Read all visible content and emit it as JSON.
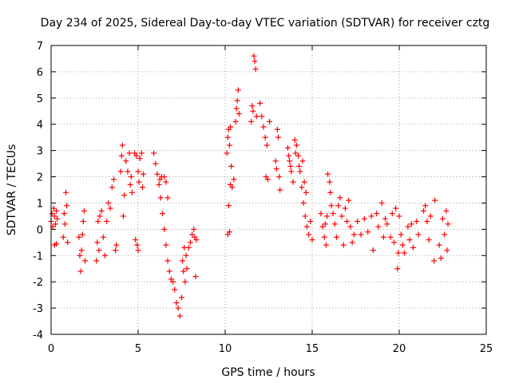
{
  "chart_data": {
    "type": "scatter",
    "title": "Day 234 of 2025, Sidereal Day-to-day VTEC variation (SDTVAR) for receiver cztg",
    "xlabel": "GPS time / hours",
    "ylabel": "SDTVAR / TECUs",
    "xlim": [
      0,
      25
    ],
    "ylim": [
      -4,
      7
    ],
    "xticks": [
      0,
      5,
      10,
      15,
      20,
      25
    ],
    "yticks": [
      -4,
      -3,
      -2,
      -1,
      0,
      1,
      2,
      3,
      4,
      5,
      6,
      7
    ],
    "grid": true,
    "marker": "+",
    "color": "#ff0000",
    "series": [
      {
        "name": "SDTVAR",
        "points": [
          [
            0.0,
            0.3
          ],
          [
            0.05,
            0.6
          ],
          [
            0.1,
            0.1
          ],
          [
            0.15,
            0.8
          ],
          [
            0.2,
            0.5
          ],
          [
            0.25,
            0.2
          ],
          [
            0.3,
            0.7
          ],
          [
            0.35,
            0.4
          ],
          [
            0.2,
            -0.6
          ],
          [
            0.3,
            -0.55
          ],
          [
            0.7,
            -0.3
          ],
          [
            0.75,
            0.6
          ],
          [
            0.8,
            0.2
          ],
          [
            0.85,
            1.4
          ],
          [
            0.9,
            0.9
          ],
          [
            0.95,
            -0.5
          ],
          [
            1.6,
            -0.3
          ],
          [
            1.65,
            -1.0
          ],
          [
            1.7,
            -1.6
          ],
          [
            1.75,
            -0.8
          ],
          [
            1.8,
            -0.2
          ],
          [
            1.85,
            0.3
          ],
          [
            1.9,
            0.7
          ],
          [
            1.95,
            -1.2
          ],
          [
            2.6,
            -1.2
          ],
          [
            2.65,
            -0.5
          ],
          [
            2.7,
            0.3
          ],
          [
            2.75,
            -0.8
          ],
          [
            2.8,
            0.5
          ],
          [
            2.9,
            0.7
          ],
          [
            3.0,
            -0.3
          ],
          [
            3.1,
            -1.0
          ],
          [
            3.2,
            0.3
          ],
          [
            3.3,
            1.0
          ],
          [
            3.4,
            0.8
          ],
          [
            3.5,
            1.6
          ],
          [
            3.6,
            1.9
          ],
          [
            3.7,
            -0.8
          ],
          [
            3.75,
            -0.6
          ],
          [
            4.0,
            2.2
          ],
          [
            4.05,
            2.8
          ],
          [
            4.1,
            3.2
          ],
          [
            4.15,
            0.5
          ],
          [
            4.2,
            1.3
          ],
          [
            4.3,
            2.6
          ],
          [
            4.4,
            2.2
          ],
          [
            4.5,
            2.9
          ],
          [
            4.55,
            1.7
          ],
          [
            4.6,
            2.0
          ],
          [
            4.65,
            1.4
          ],
          [
            4.8,
            2.9
          ],
          [
            4.9,
            2.8
          ],
          [
            5.0,
            2.2
          ],
          [
            5.05,
            1.8
          ],
          [
            5.1,
            2.7
          ],
          [
            5.2,
            2.9
          ],
          [
            5.25,
            1.6
          ],
          [
            5.3,
            2.1
          ],
          [
            4.95,
            -0.6
          ],
          [
            5.0,
            -0.8
          ],
          [
            4.85,
            -0.4
          ],
          [
            5.9,
            2.9
          ],
          [
            6.0,
            2.5
          ],
          [
            6.1,
            2.1
          ],
          [
            6.2,
            1.7
          ],
          [
            6.3,
            1.2
          ],
          [
            6.4,
            0.6
          ],
          [
            6.5,
            0.0
          ],
          [
            6.6,
            -0.6
          ],
          [
            6.7,
            -1.2
          ],
          [
            6.8,
            -1.6
          ],
          [
            6.9,
            -1.9
          ],
          [
            7.0,
            -2.0
          ],
          [
            7.1,
            -2.3
          ],
          [
            7.2,
            -2.8
          ],
          [
            6.25,
            1.9
          ],
          [
            6.35,
            2.0
          ],
          [
            6.5,
            2.0
          ],
          [
            6.6,
            1.8
          ],
          [
            6.7,
            1.2
          ],
          [
            7.3,
            -3.0
          ],
          [
            7.4,
            -3.3
          ],
          [
            7.5,
            -2.6
          ],
          [
            7.55,
            -1.2
          ],
          [
            7.6,
            -1.6
          ],
          [
            7.65,
            -0.7
          ],
          [
            7.7,
            -2.0
          ],
          [
            7.75,
            -1.0
          ],
          [
            7.8,
            -1.5
          ],
          [
            7.9,
            -0.7
          ],
          [
            8.0,
            -0.5
          ],
          [
            8.1,
            -0.2
          ],
          [
            8.2,
            0.0
          ],
          [
            8.25,
            -0.3
          ],
          [
            8.3,
            -1.8
          ],
          [
            8.35,
            -0.4
          ],
          [
            10.15,
            -0.2
          ],
          [
            10.2,
            0.9
          ],
          [
            10.25,
            -0.1
          ],
          [
            10.3,
            1.7
          ],
          [
            10.35,
            2.4
          ],
          [
            10.4,
            1.6
          ],
          [
            10.5,
            1.9
          ],
          [
            10.1,
            2.9
          ],
          [
            10.15,
            3.5
          ],
          [
            10.2,
            3.8
          ],
          [
            10.25,
            3.2
          ],
          [
            10.3,
            3.9
          ],
          [
            10.6,
            4.1
          ],
          [
            10.65,
            4.6
          ],
          [
            10.7,
            4.9
          ],
          [
            10.75,
            5.3
          ],
          [
            10.8,
            4.4
          ],
          [
            11.5,
            4.1
          ],
          [
            11.55,
            4.7
          ],
          [
            11.6,
            4.5
          ],
          [
            11.65,
            6.6
          ],
          [
            11.7,
            6.4
          ],
          [
            11.75,
            6.1
          ],
          [
            11.8,
            4.3
          ],
          [
            12.0,
            4.8
          ],
          [
            12.1,
            4.3
          ],
          [
            12.2,
            3.9
          ],
          [
            12.3,
            3.5
          ],
          [
            12.4,
            3.2
          ],
          [
            12.35,
            2.0
          ],
          [
            12.45,
            1.9
          ],
          [
            12.55,
            4.1
          ],
          [
            12.9,
            2.6
          ],
          [
            12.95,
            2.3
          ],
          [
            13.0,
            3.8
          ],
          [
            13.05,
            3.5
          ],
          [
            13.1,
            2.0
          ],
          [
            13.15,
            1.5
          ],
          [
            13.6,
            3.1
          ],
          [
            13.7,
            2.6
          ],
          [
            13.8,
            2.2
          ],
          [
            13.9,
            1.8
          ],
          [
            14.0,
            3.4
          ],
          [
            14.1,
            3.2
          ],
          [
            14.2,
            2.8
          ],
          [
            14.3,
            2.2
          ],
          [
            14.4,
            1.6
          ],
          [
            14.5,
            1.0
          ],
          [
            14.6,
            0.5
          ],
          [
            14.7,
            0.1
          ],
          [
            14.8,
            -0.2
          ],
          [
            14.9,
            0.3
          ],
          [
            15.0,
            -0.4
          ],
          [
            13.65,
            2.8
          ],
          [
            13.75,
            2.4
          ],
          [
            14.05,
            2.9
          ],
          [
            14.25,
            2.4
          ],
          [
            14.45,
            2.6
          ],
          [
            14.55,
            1.8
          ],
          [
            14.65,
            1.4
          ],
          [
            15.5,
            0.6
          ],
          [
            15.6,
            0.1
          ],
          [
            15.7,
            -0.3
          ],
          [
            15.75,
            0.2
          ],
          [
            15.8,
            -0.6
          ],
          [
            15.85,
            0.5
          ],
          [
            15.9,
            2.1
          ],
          [
            16.0,
            1.8
          ],
          [
            16.05,
            1.4
          ],
          [
            16.1,
            0.9
          ],
          [
            16.2,
            0.6
          ],
          [
            16.3,
            0.2
          ],
          [
            16.4,
            -0.3
          ],
          [
            16.5,
            0.9
          ],
          [
            16.6,
            1.2
          ],
          [
            16.7,
            0.5
          ],
          [
            16.8,
            -0.6
          ],
          [
            16.9,
            0.8
          ],
          [
            17.0,
            0.3
          ],
          [
            17.1,
            1.1
          ],
          [
            17.2,
            0.1
          ],
          [
            17.3,
            -0.5
          ],
          [
            17.4,
            -0.2
          ],
          [
            17.6,
            0.3
          ],
          [
            17.8,
            -0.2
          ],
          [
            18.0,
            0.4
          ],
          [
            18.2,
            -0.1
          ],
          [
            18.4,
            0.5
          ],
          [
            18.5,
            -0.8
          ],
          [
            18.7,
            0.6
          ],
          [
            18.8,
            0.1
          ],
          [
            19.0,
            1.0
          ],
          [
            19.1,
            -0.3
          ],
          [
            19.2,
            0.4
          ],
          [
            19.3,
            0.2
          ],
          [
            19.5,
            -0.3
          ],
          [
            19.6,
            0.6
          ],
          [
            19.7,
            -0.5
          ],
          [
            19.8,
            0.8
          ],
          [
            19.9,
            -1.5
          ],
          [
            19.95,
            -0.9
          ],
          [
            20.0,
            0.5
          ],
          [
            20.1,
            -0.2
          ],
          [
            20.2,
            -0.6
          ],
          [
            20.3,
            -0.9
          ],
          [
            20.5,
            0.1
          ],
          [
            20.6,
            -0.4
          ],
          [
            20.7,
            0.2
          ],
          [
            20.8,
            -0.7
          ],
          [
            21.0,
            0.3
          ],
          [
            21.1,
            -0.2
          ],
          [
            21.4,
            0.7
          ],
          [
            21.5,
            0.9
          ],
          [
            21.6,
            0.3
          ],
          [
            21.7,
            -0.4
          ],
          [
            21.8,
            0.5
          ],
          [
            22.0,
            -1.2
          ],
          [
            22.05,
            1.1
          ],
          [
            22.3,
            -0.6
          ],
          [
            22.4,
            -1.1
          ],
          [
            22.5,
            0.4
          ],
          [
            22.6,
            -0.2
          ],
          [
            22.7,
            0.7
          ],
          [
            22.75,
            -0.8
          ],
          [
            22.8,
            0.2
          ]
        ]
      }
    ]
  }
}
